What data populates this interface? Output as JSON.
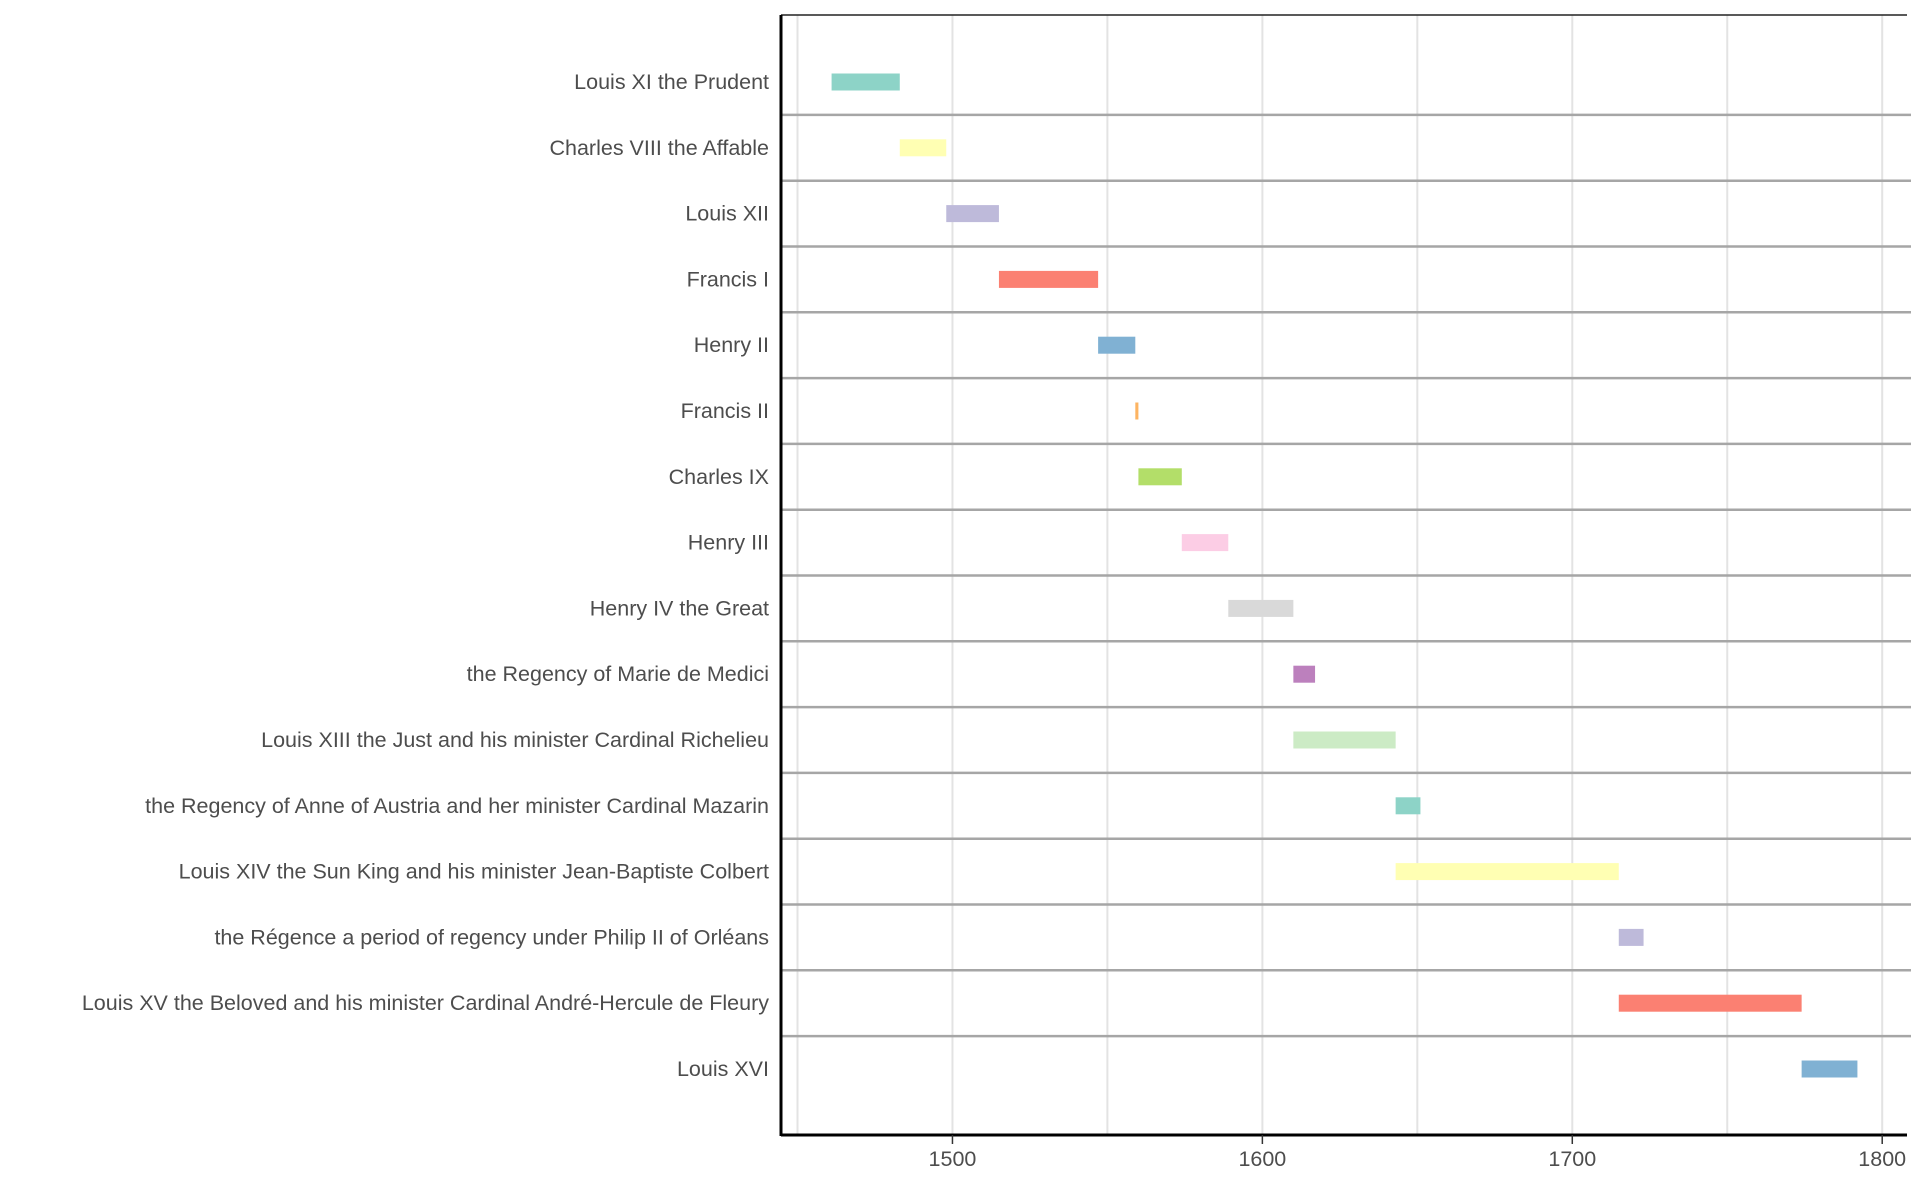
{
  "chart_data": {
    "type": "bar",
    "subtype": "timeline-gantt",
    "title": "",
    "xlabel": "",
    "ylabel": "",
    "xlim": [
      1445,
      1808
    ],
    "xticks": [
      1500,
      1600,
      1700,
      1800
    ],
    "grid": true,
    "legend": "none",
    "categories": [
      "Louis XI the Prudent",
      "Charles VIII the Affable",
      "Louis XII",
      "Francis I",
      "Henry II",
      "Francis II",
      "Charles IX",
      "Henry III",
      "Henry IV the Great",
      "the Regency of Marie de Medici",
      "Louis XIII the Just and his minister Cardinal Richelieu",
      "the Regency of Anne of Austria and her minister Cardinal Mazarin",
      "Louis XIV the Sun King and his minister Jean-Baptiste Colbert",
      "the Régence a period of regency under Philip II of Orléans",
      "Louis XV the Beloved and his minister Cardinal André-Hercule de Fleury",
      "Louis XVI"
    ],
    "start": [
      1461,
      1483,
      1498,
      1515,
      1547,
      1559,
      1560,
      1574,
      1589,
      1610,
      1610,
      1643,
      1643,
      1715,
      1715,
      1774
    ],
    "end": [
      1483,
      1498,
      1515,
      1547,
      1559,
      1560,
      1574,
      1589,
      1610,
      1617,
      1643,
      1651,
      1715,
      1723,
      1774,
      1792
    ],
    "colors": [
      "#8DD3C7",
      "#FFFFB3",
      "#BEBADA",
      "#FB8072",
      "#80B1D3",
      "#FDB462",
      "#B3DE69",
      "#FCCDE5",
      "#D9D9D9",
      "#BC80BD",
      "#CCEBC5",
      "#8DD3C7",
      "#FFFFB3",
      "#BEBADA",
      "#FB8072",
      "#80B1D3"
    ]
  }
}
